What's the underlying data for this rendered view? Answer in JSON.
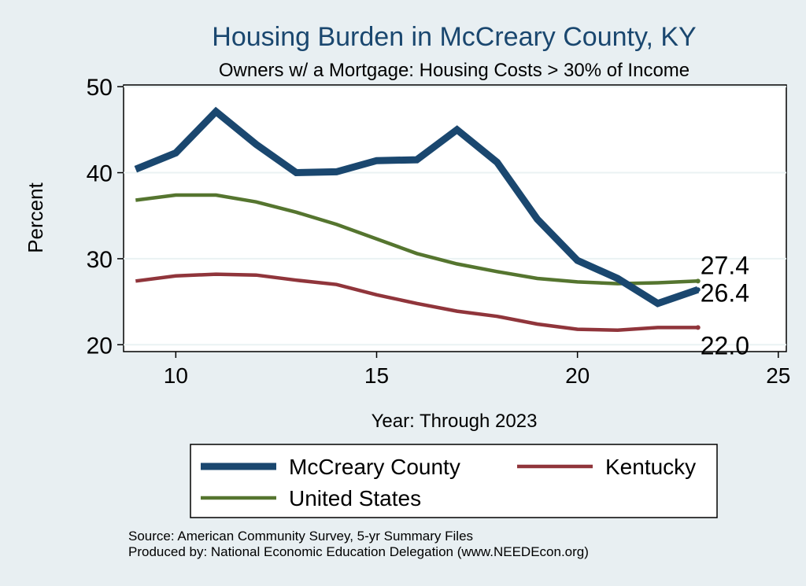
{
  "chart_data": {
    "type": "line",
    "title": "Housing Burden in McCreary County, KY",
    "subtitle": "Owners w/ a Mortgage: Housing Costs > 30% of Income",
    "xlabel": "Year: Through 2023",
    "ylabel": "Percent",
    "xlim": [
      8.7,
      25.2
    ],
    "ylim": [
      19.2,
      50.2
    ],
    "xticks": [
      10,
      15,
      20,
      25
    ],
    "yticks": [
      20,
      30,
      40,
      50
    ],
    "grid": "horizontal",
    "x": [
      9,
      10,
      11,
      12,
      13,
      14,
      15,
      16,
      17,
      18,
      19,
      20,
      21,
      22,
      23
    ],
    "series": [
      {
        "name": "McCreary County",
        "color": "#1a476f",
        "values": [
          40.4,
          42.3,
          47.1,
          43.3,
          40.0,
          40.1,
          41.4,
          41.5,
          45.0,
          41.2,
          34.6,
          29.8,
          27.7,
          24.8,
          26.4
        ],
        "end_label": "26.4"
      },
      {
        "name": "Kentucky",
        "color": "#90353b",
        "values": [
          27.4,
          28.0,
          28.2,
          28.1,
          27.5,
          27.0,
          25.8,
          24.8,
          23.9,
          23.3,
          22.4,
          21.8,
          21.7,
          22.0,
          22.0
        ],
        "end_label": "22.0"
      },
      {
        "name": "United States",
        "color": "#55752f",
        "values": [
          36.8,
          37.4,
          37.4,
          36.6,
          35.4,
          34.0,
          32.3,
          30.6,
          29.4,
          28.5,
          27.7,
          27.3,
          27.1,
          27.2,
          27.4
        ],
        "end_label": "27.4"
      }
    ],
    "legend": {
      "placement": "bottom",
      "entries": [
        "McCreary County",
        "Kentucky",
        "United States"
      ]
    }
  },
  "footer": {
    "source": "Source: American Community Survey, 5-yr Summary Files",
    "produced": "Produced by: National Economic Education Delegation (www.NEEDEcon.org)"
  }
}
